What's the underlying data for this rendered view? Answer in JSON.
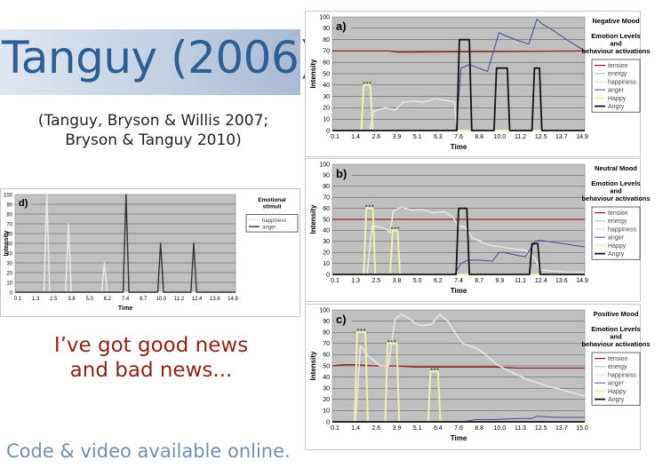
{
  "slide": {
    "title": "Tanguy (2006)",
    "citation_line1": "(Tanguy, Bryson & Willis 2007;",
    "citation_line2": "Bryson & Tanguy 2010)",
    "news_line1": "I’ve got good news",
    "news_line2": "and bad news...",
    "footer": "Code & video available online."
  },
  "colors": {
    "tension": "#9b1c1c",
    "energy": "#b4b4b4",
    "happiness": "#e6e6e6",
    "anger": "#3d4ba3",
    "happy": "#f0f0a8",
    "angry": "#111111"
  },
  "chart_data": [
    {
      "type": "line",
      "panel_label": "a)",
      "title": "Negative Mood",
      "legend_title": "Emotion Levels and behaviour activations",
      "xlabel": "Time",
      "ylabel": "Intensity",
      "xticks": [
        "0.1",
        "1.4",
        "2.6",
        "3.9",
        "5.1",
        "6.3",
        "7.6",
        "8.8",
        "10.0",
        "11.2",
        "12.5",
        "13.7",
        "14.9"
      ],
      "ylim": [
        0,
        100
      ],
      "yticks": [
        0,
        10,
        20,
        30,
        40,
        50,
        60,
        70,
        80,
        90,
        100
      ],
      "xlim": [
        0.1,
        15.4
      ],
      "legend_position": "right",
      "series": [
        {
          "name": "tension",
          "color": "#9b1c1c",
          "width": 1.3,
          "x": [
            0.1,
            3.5,
            4.1,
            15.4
          ],
          "y": [
            70,
            70,
            69,
            70
          ]
        },
        {
          "name": "energy",
          "color": "#b4b4b4",
          "width": 1,
          "x": [
            0.1,
            15.4
          ],
          "y": [
            0,
            0
          ]
        },
        {
          "name": "happiness",
          "color": "#e6e6e6",
          "width": 1.6,
          "x": [
            0.1,
            2.35,
            2.6,
            3.3,
            3.9,
            4.4,
            5.1,
            5.6,
            6.3,
            7.2,
            7.5,
            7.65,
            8.0,
            15.4
          ],
          "y": [
            0,
            0,
            17,
            20,
            18,
            25,
            26,
            25,
            28,
            26,
            25,
            0,
            0,
            0
          ]
        },
        {
          "name": "anger",
          "color": "#3d4ba3",
          "width": 1,
          "x": [
            0.1,
            7.6,
            7.9,
            8.4,
            9.5,
            10.2,
            10.5,
            11.2,
            12.0,
            12.5,
            12.8,
            13.5,
            14.3,
            15.4
          ],
          "y": [
            0,
            0,
            55,
            58,
            52,
            86,
            84,
            80,
            76,
            98,
            94,
            88,
            80,
            70
          ]
        },
        {
          "name": "Happy",
          "color": "#f0f0a8",
          "width": 2,
          "x": [
            0.1,
            1.85,
            2.0,
            2.2,
            2.4,
            2.55,
            15.4
          ],
          "y": [
            0,
            0,
            40,
            40,
            40,
            0,
            0
          ],
          "stars": [
            [
              2.2,
              40
            ]
          ]
        },
        {
          "name": "Angry",
          "color": "#111111",
          "width": 1.8,
          "x": [
            0.1,
            7.65,
            7.8,
            8.4,
            8.55,
            9.9,
            10.05,
            10.7,
            10.85,
            12.2,
            12.35,
            12.65,
            12.8,
            15.4
          ],
          "y": [
            0,
            0,
            80,
            80,
            0,
            0,
            55,
            55,
            0,
            0,
            55,
            55,
            0,
            0
          ]
        }
      ]
    },
    {
      "type": "line",
      "panel_label": "b)",
      "title": "Neutral Mood",
      "legend_title": "Emotion Levels and behaviour activations",
      "xlabel": "Time",
      "ylabel": "Intensity",
      "xticks": [
        "0.1",
        "1.3",
        "2.5",
        "3.8",
        "5.0",
        "6.2",
        "7.4",
        "8.7",
        "9.9",
        "11.1",
        "12.4",
        "13.6",
        "14.9"
      ],
      "ylim": [
        0,
        100
      ],
      "yticks": [
        0,
        10,
        20,
        30,
        40,
        50,
        60,
        70,
        80,
        90,
        100
      ],
      "xlim": [
        0.1,
        15.4
      ],
      "legend_position": "right",
      "series": [
        {
          "name": "tension",
          "color": "#9b1c1c",
          "width": 1.3,
          "x": [
            0.1,
            15.4
          ],
          "y": [
            50,
            50
          ]
        },
        {
          "name": "energy",
          "color": "#b4b4b4",
          "width": 1,
          "x": [
            0.1,
            15.4
          ],
          "y": [
            0,
            0
          ]
        },
        {
          "name": "happiness",
          "color": "#e6e6e6",
          "width": 1.6,
          "x": [
            0.1,
            2.2,
            2.5,
            3.3,
            3.6,
            3.8,
            4.3,
            5.0,
            5.5,
            6.2,
            6.9,
            7.4,
            7.7,
            8.2,
            8.6,
            9.2,
            9.8,
            10.4,
            11.1,
            11.8,
            12.4,
            12.7,
            13.6,
            14.3,
            15.4
          ],
          "y": [
            0,
            0,
            44,
            42,
            38,
            58,
            61,
            58,
            59,
            56,
            57,
            52,
            45,
            42,
            33,
            29,
            26,
            25,
            23,
            22,
            14,
            4,
            3,
            2,
            2
          ]
        },
        {
          "name": "anger",
          "color": "#3d4ba3",
          "width": 1,
          "x": [
            0.1,
            7.5,
            7.9,
            8.3,
            9.0,
            9.8,
            10.2,
            10.5,
            11.1,
            11.8,
            12.4,
            12.7,
            13.6,
            14.9,
            15.4
          ],
          "y": [
            0,
            0,
            10,
            13,
            13,
            12,
            20,
            20,
            18,
            16,
            30,
            31,
            29,
            26,
            25
          ]
        },
        {
          "name": "Happy",
          "color": "#f0f0a8",
          "width": 2,
          "x": [
            0.1,
            2.0,
            2.15,
            2.55,
            2.7,
            3.6,
            3.75,
            4.05,
            4.2,
            15.4
          ],
          "y": [
            0,
            0,
            60,
            60,
            0,
            0,
            40,
            40,
            0,
            0
          ],
          "stars": [
            [
              2.35,
              60
            ],
            [
              3.9,
              40
            ]
          ]
        },
        {
          "name": "Angry",
          "color": "#111111",
          "width": 1.8,
          "x": [
            0.1,
            7.6,
            7.75,
            8.25,
            8.4,
            12.05,
            12.2,
            12.55,
            12.7,
            15.4
          ],
          "y": [
            0,
            0,
            60,
            60,
            0,
            0,
            28,
            28,
            0,
            0
          ]
        }
      ]
    },
    {
      "type": "line",
      "panel_label": "c)",
      "title": "Positive Mood",
      "legend_title": "Emotion Levels and behaviour activations",
      "xlabel": "Time",
      "ylabel": "Intensity",
      "xticks": [
        "0.1",
        "1.4",
        "2.6",
        "3.9",
        "5.1",
        "6.4",
        "7.6",
        "8.8",
        "10.0",
        "11.3",
        "12.5",
        "13.7",
        "15.0"
      ],
      "ylim": [
        0,
        100
      ],
      "yticks": [
        0,
        10,
        20,
        30,
        40,
        50,
        60,
        70,
        80,
        90,
        100
      ],
      "xlim": [
        0.1,
        15.4
      ],
      "legend_position": "right",
      "series": [
        {
          "name": "tension",
          "color": "#9b1c1c",
          "width": 1.3,
          "x": [
            0.1,
            0.8,
            1.5,
            2.6,
            3.9,
            5.1,
            6.4,
            7.6,
            8.8,
            10.0,
            11.3,
            12.5,
            13.7,
            15.4
          ],
          "y": [
            50,
            51,
            51,
            50,
            50,
            49,
            49,
            49,
            49,
            49,
            48,
            48,
            48,
            48
          ]
        },
        {
          "name": "energy",
          "color": "#b4b4b4",
          "width": 1,
          "x": [
            0.1,
            15.4
          ],
          "y": [
            0,
            0
          ]
        },
        {
          "name": "happiness",
          "color": "#e6e6e6",
          "width": 1.6,
          "x": [
            0.1,
            1.5,
            1.8,
            2.2,
            2.6,
            3.0,
            3.5,
            3.9,
            4.3,
            4.8,
            5.1,
            5.5,
            6.1,
            6.6,
            7.1,
            7.6,
            8.0,
            8.8,
            9.4,
            10.0,
            10.6,
            11.3,
            11.9,
            12.5,
            13.1,
            13.7,
            14.4,
            15.4
          ],
          "y": [
            0,
            0,
            68,
            60,
            55,
            50,
            50,
            92,
            96,
            92,
            88,
            86,
            87,
            96,
            90,
            78,
            70,
            66,
            60,
            52,
            47,
            42,
            38,
            35,
            32,
            30,
            27,
            23
          ]
        },
        {
          "name": "anger",
          "color": "#3d4ba3",
          "width": 1,
          "x": [
            0.1,
            8.0,
            8.8,
            10.0,
            11.3,
            12.2,
            12.5,
            13.7,
            15.4
          ],
          "y": [
            0,
            0,
            2,
            2,
            3,
            3,
            5,
            4,
            4
          ]
        },
        {
          "name": "Happy",
          "color": "#f0f0a8",
          "width": 2,
          "x": [
            0.1,
            1.45,
            1.6,
            2.1,
            2.25,
            3.3,
            3.45,
            4.0,
            4.15,
            5.9,
            6.05,
            6.5,
            6.65,
            15.4
          ],
          "y": [
            0,
            0,
            80,
            80,
            0,
            0,
            70,
            70,
            0,
            0,
            45,
            45,
            0,
            0
          ],
          "stars": [
            [
              1.85,
              80
            ],
            [
              3.7,
              70
            ],
            [
              6.3,
              45
            ]
          ]
        },
        {
          "name": "Angry",
          "color": "#111111",
          "width": 1.8,
          "x": [
            0.1,
            15.4
          ],
          "y": [
            0,
            0
          ]
        }
      ]
    },
    {
      "type": "line",
      "panel_label": "d)",
      "title": "",
      "legend_title": "Emotional stimuli",
      "xlabel": "Time",
      "ylabel": "Intensity",
      "xticks": [
        "0.1",
        "1.3",
        "2.5",
        "3.8",
        "5.0",
        "6.2",
        "7.4",
        "8.7",
        "10.0",
        "11.2",
        "12.4",
        "13.6",
        "14.9"
      ],
      "ylim": [
        0,
        100
      ],
      "yticks": [
        0,
        10,
        20,
        30,
        40,
        50,
        60,
        70,
        80,
        90,
        100
      ],
      "xlim": [
        0.1,
        15.4
      ],
      "legend_position": "right",
      "series": [
        {
          "name": "happiness",
          "color": "#e6e6e6",
          "width": 1.6,
          "x": [
            0.1,
            2.1,
            2.3,
            2.5,
            3.6,
            3.8,
            4.0,
            6.1,
            6.3,
            6.5,
            15.4
          ],
          "y": [
            0,
            0,
            100,
            0,
            0,
            70,
            0,
            0,
            30,
            0,
            0
          ]
        },
        {
          "name": "anger",
          "color": "#333333",
          "width": 1.4,
          "x": [
            0.1,
            7.6,
            7.8,
            8.0,
            10.0,
            10.2,
            10.4,
            12.3,
            12.5,
            12.7,
            15.4
          ],
          "y": [
            0,
            0,
            100,
            0,
            0,
            50,
            0,
            0,
            50,
            0,
            0
          ]
        }
      ]
    }
  ]
}
